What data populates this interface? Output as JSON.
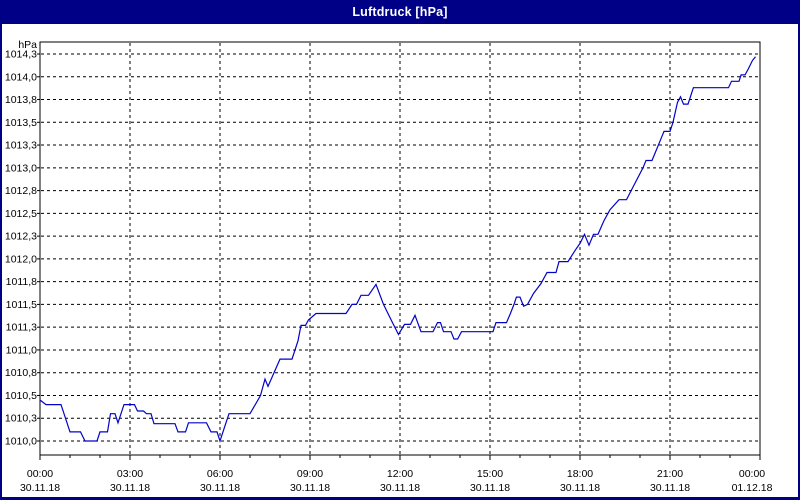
{
  "window": {
    "title": "Luftdruck [hPa]"
  },
  "colors": {
    "titlebar_bg": "#000086",
    "titlebar_text": "#ffffff",
    "frame": "#000086",
    "background": "#ffffff",
    "plot_border": "#000000",
    "gridline": "#000000",
    "tick_text": "#000000",
    "series_line": "#0303c6"
  },
  "chart_data": {
    "type": "line",
    "title": "Luftdruck [hPa]",
    "ylabel": "hPa",
    "xlabel": "",
    "x_unit": "hours",
    "xlim": [
      0,
      24
    ],
    "ylim": [
      1009.85,
      1014.38
    ],
    "grid": true,
    "gridline_step_hpa": 0.25,
    "x_minor_tick_hours": 1,
    "y_ticks": [
      {
        "value": 1014.25,
        "label": "1014,3"
      },
      {
        "value": 1014.0,
        "label": "1014,0"
      },
      {
        "value": 1013.75,
        "label": "1013,8"
      },
      {
        "value": 1013.5,
        "label": "1013,5"
      },
      {
        "value": 1013.25,
        "label": "1013,3"
      },
      {
        "value": 1013.0,
        "label": "1013,0"
      },
      {
        "value": 1012.75,
        "label": "1012,8"
      },
      {
        "value": 1012.5,
        "label": "1012,5"
      },
      {
        "value": 1012.25,
        "label": "1012,3"
      },
      {
        "value": 1012.0,
        "label": "1012,0"
      },
      {
        "value": 1011.75,
        "label": "1011,8"
      },
      {
        "value": 1011.5,
        "label": "1011,5"
      },
      {
        "value": 1011.25,
        "label": "1011,3"
      },
      {
        "value": 1011.0,
        "label": "1011,0"
      },
      {
        "value": 1010.75,
        "label": "1010,8"
      },
      {
        "value": 1010.5,
        "label": "1010,5"
      },
      {
        "value": 1010.25,
        "label": "1010,3"
      },
      {
        "value": 1010.0,
        "label": "1010,0"
      }
    ],
    "x_ticks": [
      {
        "hour": 0,
        "time": "00:00",
        "date": "30.11.18"
      },
      {
        "hour": 3,
        "time": "03:00",
        "date": "30.11.18"
      },
      {
        "hour": 6,
        "time": "06:00",
        "date": "30.11.18"
      },
      {
        "hour": 9,
        "time": "09:00",
        "date": "30.11.18"
      },
      {
        "hour": 12,
        "time": "12:00",
        "date": "30.11.18"
      },
      {
        "hour": 15,
        "time": "15:00",
        "date": "30.11.18"
      },
      {
        "hour": 18,
        "time": "18:00",
        "date": "30.11.18"
      },
      {
        "hour": 21,
        "time": "21:00",
        "date": "30.11.18"
      },
      {
        "hour": 24,
        "time": "00:00",
        "date": "01.12.18"
      }
    ],
    "series": [
      {
        "name": "Luftdruck",
        "color": "#0303c6",
        "points": [
          [
            0,
            1010.45
          ],
          [
            0.2,
            1010.4
          ],
          [
            0.7,
            1010.4
          ],
          [
            1,
            1010.1
          ],
          [
            1.35,
            1010.1
          ],
          [
            1.5,
            1010
          ],
          [
            1.9,
            1010
          ],
          [
            2,
            1010.1
          ],
          [
            2.25,
            1010.1
          ],
          [
            2.35,
            1010.3
          ],
          [
            2.5,
            1010.3
          ],
          [
            2.6,
            1010.2
          ],
          [
            2.8,
            1010.4
          ],
          [
            3.15,
            1010.4
          ],
          [
            3.25,
            1010.33
          ],
          [
            3.45,
            1010.33
          ],
          [
            3.55,
            1010.3
          ],
          [
            3.7,
            1010.3
          ],
          [
            3.8,
            1010.19
          ],
          [
            4.5,
            1010.19
          ],
          [
            4.6,
            1010.1
          ],
          [
            4.85,
            1010.1
          ],
          [
            4.95,
            1010.2
          ],
          [
            5.55,
            1010.2
          ],
          [
            5.7,
            1010.1
          ],
          [
            5.9,
            1010.1
          ],
          [
            6,
            1010
          ],
          [
            6.3,
            1010.3
          ],
          [
            7,
            1010.3
          ],
          [
            7.35,
            1010.5
          ],
          [
            7.5,
            1010.68
          ],
          [
            7.6,
            1010.6
          ],
          [
            7.8,
            1010.75
          ],
          [
            8,
            1010.9
          ],
          [
            8.4,
            1010.9
          ],
          [
            8.6,
            1011.1
          ],
          [
            8.7,
            1011.27
          ],
          [
            8.85,
            1011.27
          ],
          [
            8.95,
            1011.33
          ],
          [
            9.2,
            1011.4
          ],
          [
            10.2,
            1011.4
          ],
          [
            10.4,
            1011.5
          ],
          [
            10.55,
            1011.5
          ],
          [
            10.7,
            1011.6
          ],
          [
            10.95,
            1011.6
          ],
          [
            11.2,
            1011.72
          ],
          [
            11.45,
            1011.5
          ],
          [
            11.75,
            1011.3
          ],
          [
            11.95,
            1011.17
          ],
          [
            12.15,
            1011.28
          ],
          [
            12.35,
            1011.28
          ],
          [
            12.5,
            1011.38
          ],
          [
            12.7,
            1011.2
          ],
          [
            13.1,
            1011.2
          ],
          [
            13.25,
            1011.3
          ],
          [
            13.35,
            1011.3
          ],
          [
            13.45,
            1011.2
          ],
          [
            13.7,
            1011.2
          ],
          [
            13.8,
            1011.12
          ],
          [
            13.92,
            1011.12
          ],
          [
            14.05,
            1011.2
          ],
          [
            15.1,
            1011.2
          ],
          [
            15.2,
            1011.3
          ],
          [
            15.55,
            1011.3
          ],
          [
            15.68,
            1011.4
          ],
          [
            15.8,
            1011.5
          ],
          [
            15.88,
            1011.58
          ],
          [
            16.0,
            1011.58
          ],
          [
            16.12,
            1011.48
          ],
          [
            16.25,
            1011.5
          ],
          [
            16.45,
            1011.62
          ],
          [
            16.7,
            1011.73
          ],
          [
            16.9,
            1011.85
          ],
          [
            17.2,
            1011.85
          ],
          [
            17.3,
            1011.97
          ],
          [
            17.6,
            1011.97
          ],
          [
            17.85,
            1012.1
          ],
          [
            18,
            1012.17
          ],
          [
            18.15,
            1012.27
          ],
          [
            18.3,
            1012.15
          ],
          [
            18.45,
            1012.27
          ],
          [
            18.6,
            1012.27
          ],
          [
            18.8,
            1012.42
          ],
          [
            19,
            1012.54
          ],
          [
            19.3,
            1012.65
          ],
          [
            19.55,
            1012.65
          ],
          [
            19.8,
            1012.81
          ],
          [
            20.1,
            1013
          ],
          [
            20.2,
            1013.08
          ],
          [
            20.4,
            1013.08
          ],
          [
            20.55,
            1013.2
          ],
          [
            20.7,
            1013.32
          ],
          [
            20.8,
            1013.4
          ],
          [
            21,
            1013.4
          ],
          [
            21.1,
            1013.5
          ],
          [
            21.25,
            1013.72
          ],
          [
            21.35,
            1013.78
          ],
          [
            21.45,
            1013.7
          ],
          [
            21.6,
            1013.7
          ],
          [
            21.7,
            1013.8
          ],
          [
            21.78,
            1013.88
          ],
          [
            22.95,
            1013.88
          ],
          [
            23.05,
            1013.95
          ],
          [
            23.3,
            1013.95
          ],
          [
            23.37,
            1014.02
          ],
          [
            23.5,
            1014.02
          ],
          [
            23.6,
            1014.08
          ],
          [
            23.75,
            1014.18
          ],
          [
            23.85,
            1014.22
          ]
        ]
      }
    ]
  }
}
